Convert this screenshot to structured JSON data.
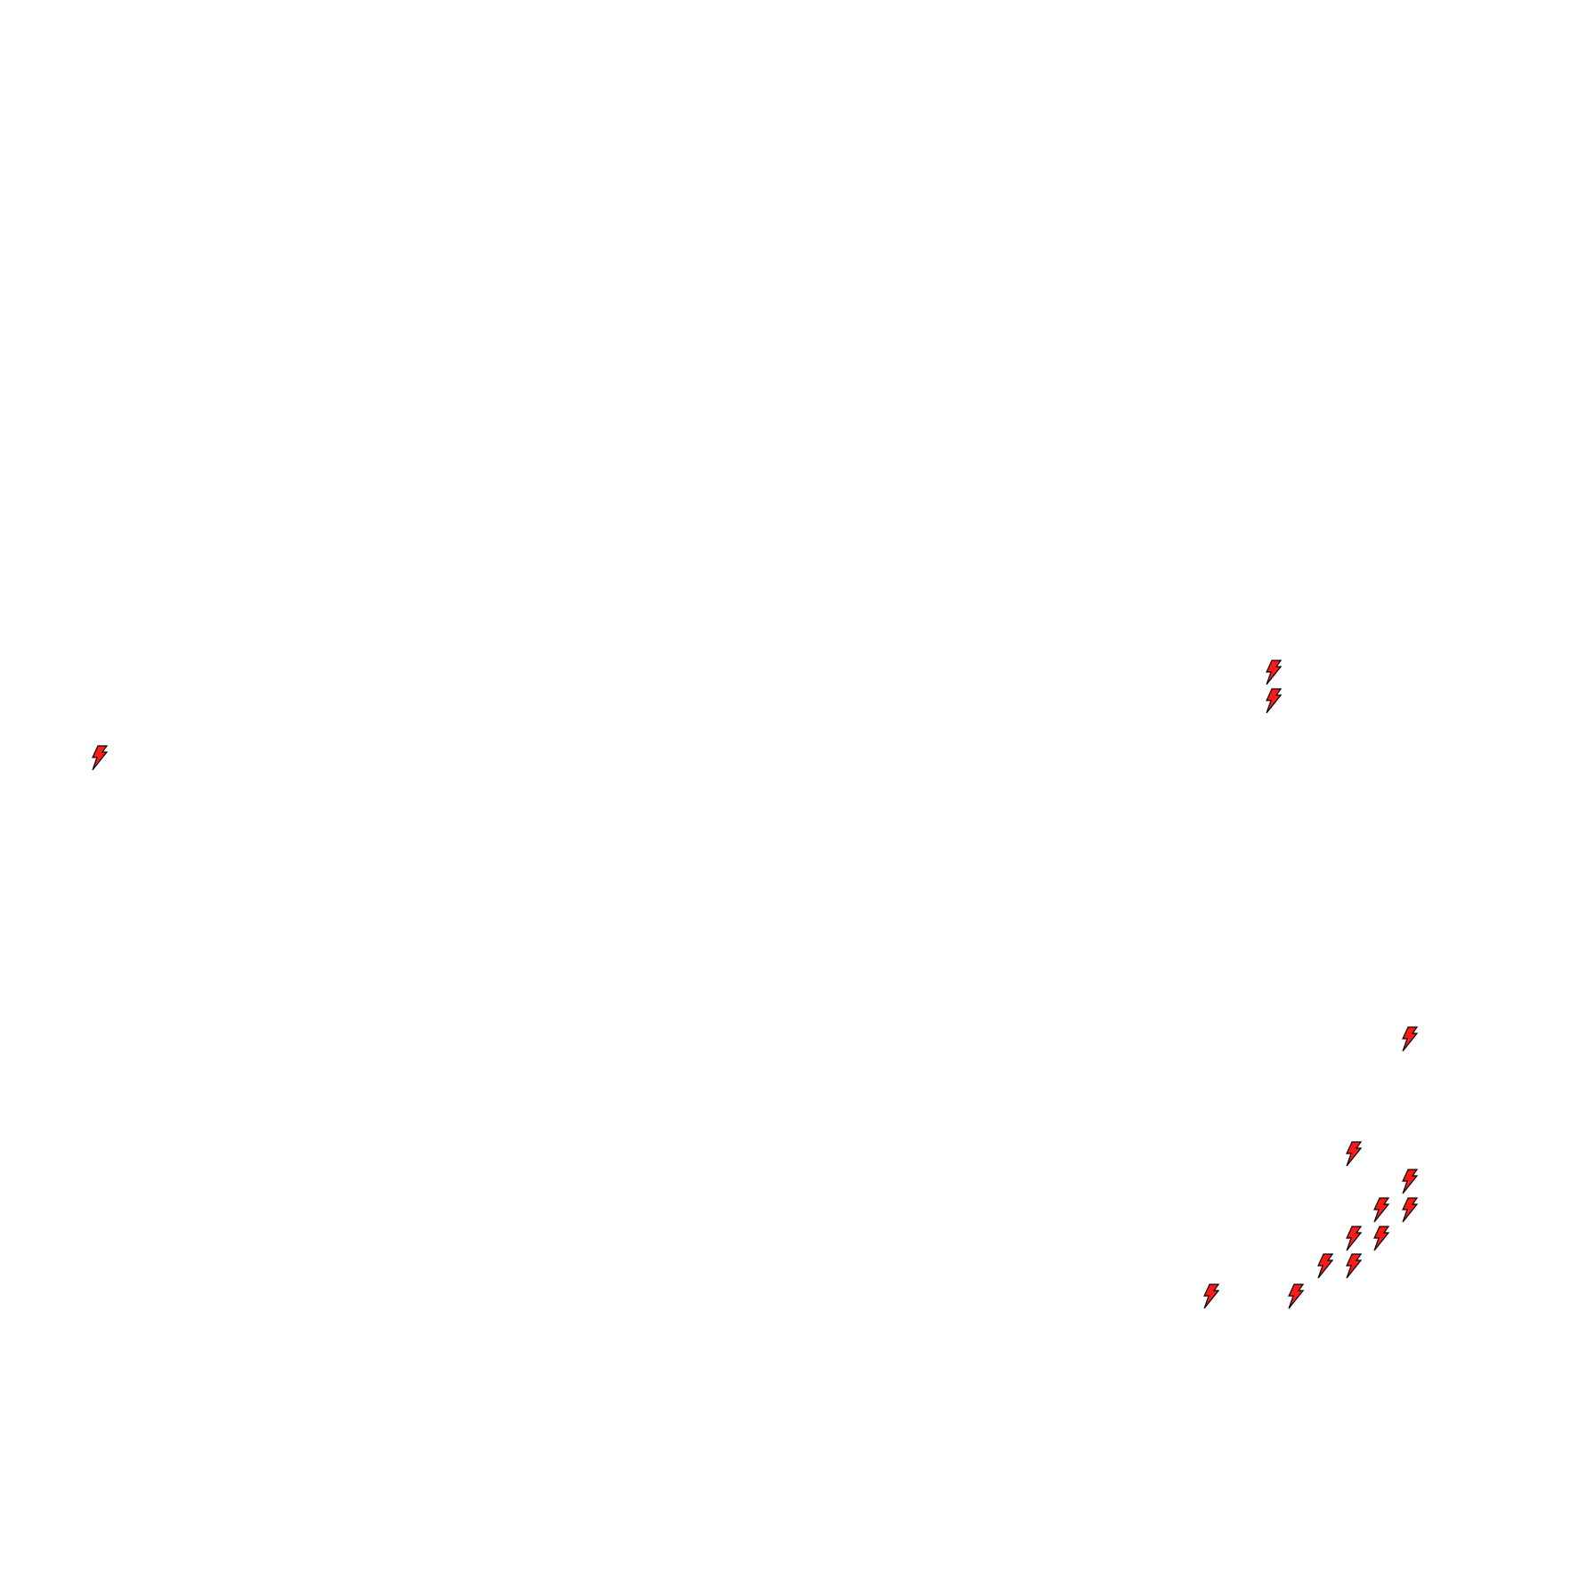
{
  "canvas": {
    "background": "#ffffff",
    "icon": "lightning-bolt-icon",
    "icon_fill": "#ff1a1a",
    "icon_stroke": "#000000"
  }
}
